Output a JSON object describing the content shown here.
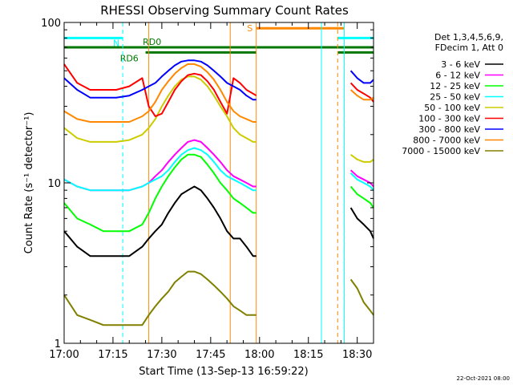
{
  "chart_data": {
    "type": "line",
    "title": "RHESSI Observing Summary Count Rates",
    "xlabel": "Start Time (13-Sep-13 16:59:22)",
    "ylabel": "Count Rate (s⁻¹ detector⁻¹)",
    "yscale": "log",
    "ylim": [
      1,
      100
    ],
    "xlim_minutes": [
      0,
      95
    ],
    "x_ticks": [
      {
        "t": 0,
        "label": "17:00"
      },
      {
        "t": 15,
        "label": "17:15"
      },
      {
        "t": 30,
        "label": "17:30"
      },
      {
        "t": 45,
        "label": "17:45"
      },
      {
        "t": 60,
        "label": "18:00"
      },
      {
        "t": 75,
        "label": "18:15"
      },
      {
        "t": 90,
        "label": "18:30"
      }
    ],
    "y_ticks": [
      {
        "v": 1,
        "label": "1"
      },
      {
        "v": 10,
        "label": "10"
      },
      {
        "v": 100,
        "label": "100"
      }
    ],
    "legend_header": [
      "Det 1,3,4,5,6,9,",
      "FDecim 1, Att 0"
    ],
    "legend_position": "right",
    "footer_date": "22-Oct-2021 08:00",
    "flags": [
      {
        "label": "N",
        "color": "#00ffff",
        "value": 80,
        "segments": [
          [
            0,
            18
          ],
          [
            84,
            95
          ]
        ]
      },
      {
        "label": "S",
        "color": "#ff8800",
        "value": 92,
        "segments": [
          [
            59,
            86
          ]
        ]
      },
      {
        "label": "RD0",
        "color": "#007700",
        "value": 70,
        "segments": [
          [
            0,
            84
          ],
          [
            84,
            95
          ]
        ]
      },
      {
        "label": "RD6",
        "color": "#007700",
        "value": 65,
        "segments": [
          [
            25,
            59
          ],
          [
            84,
            95
          ]
        ]
      }
    ],
    "markers": [
      {
        "t": 18,
        "color": "#00ffff",
        "style": "dashed"
      },
      {
        "t": 26,
        "color": "#ff8800",
        "style": "solid"
      },
      {
        "t": 51,
        "color": "#ff8800",
        "style": "solid"
      },
      {
        "t": 59,
        "color": "#ff8800",
        "style": "solid"
      },
      {
        "t": 79,
        "color": "#00ffff",
        "style": "solid"
      },
      {
        "t": 84,
        "color": "#ff8800",
        "style": "dashed"
      },
      {
        "t": 86,
        "color": "#00ffff",
        "style": "solid"
      },
      {
        "t": 95,
        "color": "#00ffff",
        "style": "dashed"
      }
    ],
    "data_gap_minutes": [
      59,
      86
    ],
    "x_minutes": [
      0,
      4,
      8,
      12,
      16,
      20,
      24,
      26,
      28,
      30,
      32,
      34,
      36,
      38,
      40,
      42,
      44,
      46,
      48,
      50,
      52,
      54,
      56,
      58,
      59,
      86,
      88,
      90,
      92,
      94,
      95
    ],
    "series": [
      {
        "name": "3 - 6 keV",
        "color": "#000000",
        "values": [
          5.0,
          4.0,
          3.5,
          3.5,
          3.5,
          3.5,
          4.0,
          4.5,
          5.0,
          5.5,
          6.5,
          7.5,
          8.5,
          9.0,
          9.5,
          9.0,
          8.0,
          7.0,
          6.0,
          5.0,
          4.5,
          4.5,
          4.0,
          3.5,
          3.5,
          null,
          7.0,
          6.0,
          5.5,
          5.0,
          4.5
        ]
      },
      {
        "name": "6 - 12 keV",
        "color": "#ff00ff",
        "values": [
          10.5,
          9.5,
          9.0,
          9.0,
          9.0,
          9.0,
          9.5,
          10.0,
          11.0,
          12.0,
          13.5,
          15.0,
          16.5,
          18.0,
          18.5,
          18.0,
          16.5,
          15.0,
          13.5,
          12.0,
          11.0,
          10.5,
          10.0,
          9.5,
          9.5,
          null,
          12.0,
          11.0,
          10.5,
          10.0,
          9.5
        ]
      },
      {
        "name": "12 - 25 keV",
        "color": "#00ff00",
        "values": [
          7.5,
          6.0,
          5.5,
          5.0,
          5.0,
          5.0,
          5.5,
          6.5,
          8.0,
          9.5,
          11.0,
          12.5,
          14.0,
          15.0,
          15.0,
          14.5,
          13.0,
          11.5,
          10.0,
          9.0,
          8.0,
          7.5,
          7.0,
          6.5,
          6.5,
          null,
          9.5,
          8.5,
          8.0,
          7.5,
          7.0
        ]
      },
      {
        "name": "25 - 50 keV",
        "color": "#00ffff",
        "values": [
          10.5,
          9.5,
          9.0,
          9.0,
          9.0,
          9.0,
          9.5,
          10.0,
          10.5,
          11.0,
          12.0,
          13.5,
          15.0,
          16.0,
          16.5,
          16.0,
          15.0,
          13.5,
          12.0,
          11.0,
          10.5,
          10.0,
          9.5,
          9.0,
          9.0,
          null,
          11.5,
          10.5,
          10.0,
          9.5,
          9.0
        ]
      },
      {
        "name": "50 - 100 keV",
        "color": "#cccc00",
        "values": [
          22.0,
          19.0,
          18.0,
          18.0,
          18.0,
          18.5,
          20.0,
          22.0,
          25.0,
          30.0,
          35.0,
          40.0,
          44.0,
          46.0,
          46.0,
          44.0,
          40.0,
          35.0,
          30.0,
          26.0,
          22.0,
          20.0,
          19.0,
          18.0,
          18.0,
          null,
          15.0,
          14.0,
          13.5,
          13.5,
          14.0
        ]
      },
      {
        "name": "100 - 300 keV",
        "color": "#ff0000",
        "values": [
          55.0,
          42.0,
          38.0,
          38.0,
          38.0,
          40.0,
          45.0,
          30.0,
          26.0,
          27.0,
          32.0,
          38.0,
          43.0,
          47.0,
          48.0,
          47.0,
          43.0,
          38.0,
          32.0,
          27.0,
          45.0,
          42.0,
          38.0,
          36.0,
          35.0,
          null,
          42.0,
          38.0,
          36.0,
          34.0,
          32.0
        ]
      },
      {
        "name": "300 - 800 keV",
        "color": "#0000ff",
        "values": [
          45.0,
          38.0,
          34.0,
          34.0,
          34.0,
          35.0,
          38.0,
          40.0,
          42.0,
          46.0,
          50.0,
          54.0,
          57.0,
          58.0,
          58.0,
          57.0,
          54.0,
          50.0,
          46.0,
          42.0,
          40.0,
          38.0,
          35.0,
          33.0,
          33.0,
          null,
          50.0,
          45.0,
          42.0,
          42.0,
          44.0
        ]
      },
      {
        "name": "800 - 7000 keV",
        "color": "#ff8800",
        "values": [
          28.0,
          25.0,
          24.0,
          24.0,
          24.0,
          24.0,
          26.0,
          28.0,
          32.0,
          38.0,
          43.0,
          48.0,
          52.0,
          55.0,
          55.0,
          53.0,
          49.0,
          44.0,
          38.0,
          32.0,
          28.0,
          26.0,
          25.0,
          24.0,
          24.0,
          null,
          38.0,
          35.0,
          33.0,
          33.0,
          34.0
        ]
      },
      {
        "name": "7000 - 15000 keV",
        "color": "#808000",
        "values": [
          2.0,
          1.5,
          1.4,
          1.3,
          1.3,
          1.3,
          1.3,
          1.5,
          1.7,
          1.9,
          2.1,
          2.4,
          2.6,
          2.8,
          2.8,
          2.7,
          2.5,
          2.3,
          2.1,
          1.9,
          1.7,
          1.6,
          1.5,
          1.5,
          1.5,
          null,
          2.5,
          2.2,
          1.8,
          1.6,
          1.5
        ]
      }
    ]
  }
}
